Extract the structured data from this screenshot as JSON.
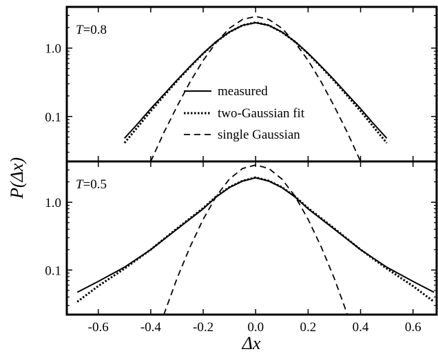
{
  "chart_data": [
    {
      "type": "line",
      "panel_label": {
        "var": "T",
        "rest": "=0.8"
      },
      "xlabel": "Δx",
      "ylabel": "P(Δx)",
      "x_scale": "linear",
      "y_scale": "log",
      "xlim": [
        -0.72,
        0.69
      ],
      "ylim": [
        0.022,
        4.0
      ],
      "x_ticks": [
        -0.6,
        -0.4,
        -0.2,
        0.0,
        0.2,
        0.4,
        0.6
      ],
      "y_ticks": [
        0.1,
        1.0
      ],
      "y_tick_labels": [
        "0.1",
        "1.0"
      ],
      "legend": {
        "position": "center-right",
        "entries": [
          {
            "label": "measured",
            "style": "solid"
          },
          {
            "label": "two-Gaussian fit",
            "style": "dotted"
          },
          {
            "label": "single Gaussian",
            "style": "dashed"
          }
        ]
      },
      "series": [
        {
          "name": "measured",
          "style": "solid",
          "x": [
            -0.5,
            -0.45,
            -0.4,
            -0.35,
            -0.3,
            -0.25,
            -0.2,
            -0.15,
            -0.1,
            -0.05,
            0.0,
            0.05,
            0.1,
            0.15,
            0.2,
            0.25,
            0.3,
            0.35,
            0.4,
            0.45,
            0.5
          ],
          "y": [
            0.048,
            0.078,
            0.13,
            0.21,
            0.34,
            0.54,
            0.84,
            1.25,
            1.72,
            2.15,
            2.35,
            2.15,
            1.72,
            1.25,
            0.84,
            0.54,
            0.34,
            0.21,
            0.13,
            0.078,
            0.048
          ]
        },
        {
          "name": "two-Gaussian fit",
          "style": "dotted",
          "x": [
            -0.5,
            -0.45,
            -0.4,
            -0.35,
            -0.3,
            -0.25,
            -0.2,
            -0.15,
            -0.1,
            -0.05,
            0.0,
            0.05,
            0.1,
            0.15,
            0.2,
            0.25,
            0.3,
            0.35,
            0.4,
            0.45,
            0.5
          ],
          "y": [
            0.041,
            0.07,
            0.12,
            0.2,
            0.33,
            0.53,
            0.83,
            1.24,
            1.71,
            2.15,
            2.37,
            2.15,
            1.71,
            1.24,
            0.83,
            0.53,
            0.33,
            0.2,
            0.12,
            0.07,
            0.041
          ]
        },
        {
          "name": "single Gaussian",
          "style": "dashed",
          "x": [
            -0.4,
            -0.35,
            -0.3,
            -0.25,
            -0.2,
            -0.15,
            -0.1,
            -0.05,
            0.0,
            0.05,
            0.1,
            0.15,
            0.2,
            0.25,
            0.3,
            0.35,
            0.4
          ],
          "y": [
            0.022,
            0.058,
            0.14,
            0.32,
            0.66,
            1.21,
            1.95,
            2.62,
            2.9,
            2.62,
            1.95,
            1.21,
            0.66,
            0.32,
            0.14,
            0.058,
            0.022
          ]
        }
      ]
    },
    {
      "type": "line",
      "panel_label": {
        "var": "T",
        "rest": "=0.5"
      },
      "xlabel": "Δx",
      "ylabel": "P(Δx)",
      "x_scale": "linear",
      "y_scale": "log",
      "xlim": [
        -0.72,
        0.69
      ],
      "ylim": [
        0.022,
        4.0
      ],
      "x_ticks": [
        -0.6,
        -0.4,
        -0.2,
        0.0,
        0.2,
        0.4,
        0.6
      ],
      "x_tick_labels": [
        "-0.6",
        "-0.4",
        "-0.2",
        "0.0",
        "0.2",
        "0.4",
        "0.6"
      ],
      "y_ticks": [
        0.1,
        1.0
      ],
      "y_tick_labels": [
        "0.1",
        "1.0"
      ],
      "series": [
        {
          "name": "measured",
          "style": "solid",
          "x": [
            -0.68,
            -0.6,
            -0.5,
            -0.4,
            -0.3,
            -0.2,
            -0.15,
            -0.1,
            -0.05,
            0.0,
            0.05,
            0.1,
            0.15,
            0.2,
            0.3,
            0.4,
            0.5,
            0.6,
            0.68
          ],
          "y": [
            0.047,
            0.068,
            0.11,
            0.2,
            0.4,
            0.8,
            1.2,
            1.65,
            2.05,
            2.3,
            2.05,
            1.65,
            1.2,
            0.8,
            0.4,
            0.2,
            0.11,
            0.068,
            0.047
          ]
        },
        {
          "name": "two-Gaussian fit",
          "style": "dotted",
          "x": [
            -0.68,
            -0.6,
            -0.5,
            -0.4,
            -0.3,
            -0.2,
            -0.15,
            -0.1,
            -0.05,
            0.0,
            0.05,
            0.1,
            0.15,
            0.2,
            0.3,
            0.4,
            0.5,
            0.6,
            0.68
          ],
          "y": [
            0.034,
            0.058,
            0.105,
            0.2,
            0.41,
            0.82,
            1.22,
            1.67,
            2.07,
            2.32,
            2.07,
            1.67,
            1.22,
            0.82,
            0.41,
            0.2,
            0.105,
            0.058,
            0.034
          ]
        },
        {
          "name": "single Gaussian",
          "style": "dashed",
          "x": [
            -0.35,
            -0.3,
            -0.25,
            -0.2,
            -0.15,
            -0.1,
            -0.05,
            0.0,
            0.05,
            0.1,
            0.15,
            0.2,
            0.25,
            0.3,
            0.35
          ],
          "y": [
            0.022,
            0.075,
            0.22,
            0.56,
            1.23,
            2.2,
            3.15,
            3.55,
            3.15,
            2.2,
            1.23,
            0.56,
            0.22,
            0.075,
            0.022
          ]
        }
      ]
    }
  ]
}
